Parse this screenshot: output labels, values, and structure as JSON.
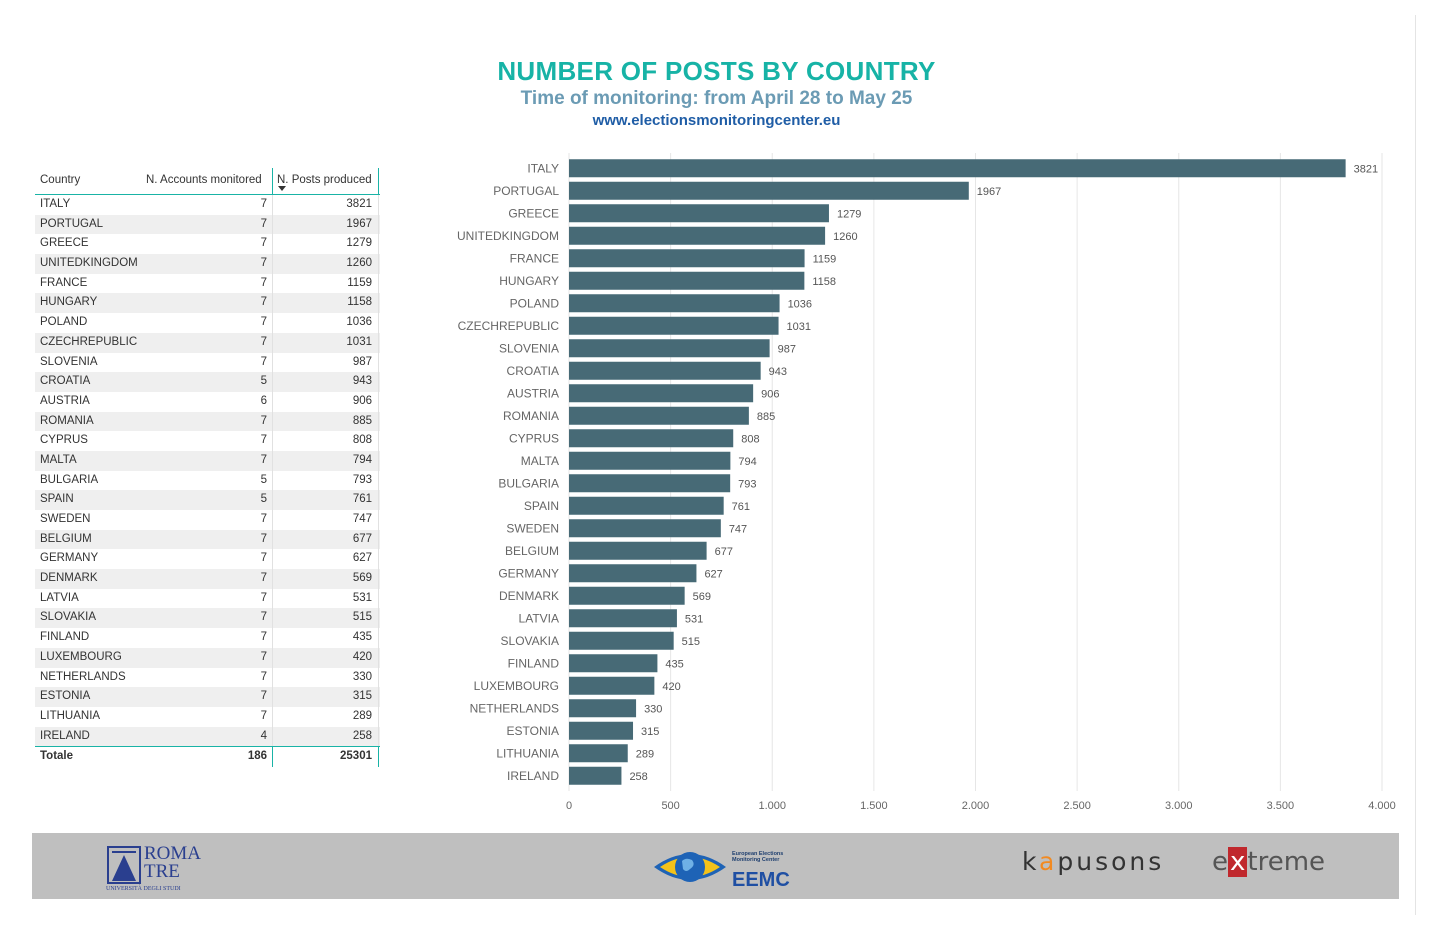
{
  "header": {
    "title": "NUMBER OF POSTS BY COUNTRY",
    "subtitle": "Time of monitoring: from April 28 to May 25",
    "website": "www.electionsmonitoringcenter.eu"
  },
  "table": {
    "columns": [
      "Country",
      "N. Accounts monitored",
      "N. Posts produced"
    ],
    "rows": [
      {
        "country": "ITALY",
        "accounts": "7",
        "posts": "3821"
      },
      {
        "country": "PORTUGAL",
        "accounts": "7",
        "posts": "1967"
      },
      {
        "country": "GREECE",
        "accounts": "7",
        "posts": "1279"
      },
      {
        "country": "UNITEDKINGDOM",
        "accounts": "7",
        "posts": "1260"
      },
      {
        "country": "FRANCE",
        "accounts": "7",
        "posts": "1159"
      },
      {
        "country": "HUNGARY",
        "accounts": "7",
        "posts": "1158"
      },
      {
        "country": "POLAND",
        "accounts": "7",
        "posts": "1036"
      },
      {
        "country": "CZECHREPUBLIC",
        "accounts": "7",
        "posts": "1031"
      },
      {
        "country": "SLOVENIA",
        "accounts": "7",
        "posts": "987"
      },
      {
        "country": "CROATIA",
        "accounts": "5",
        "posts": "943"
      },
      {
        "country": "AUSTRIA",
        "accounts": "6",
        "posts": "906"
      },
      {
        "country": "ROMANIA",
        "accounts": "7",
        "posts": "885"
      },
      {
        "country": "CYPRUS",
        "accounts": "7",
        "posts": "808"
      },
      {
        "country": "MALTA",
        "accounts": "7",
        "posts": "794"
      },
      {
        "country": "BULGARIA",
        "accounts": "5",
        "posts": "793"
      },
      {
        "country": "SPAIN",
        "accounts": "5",
        "posts": "761"
      },
      {
        "country": "SWEDEN",
        "accounts": "7",
        "posts": "747"
      },
      {
        "country": "BELGIUM",
        "accounts": "7",
        "posts": "677"
      },
      {
        "country": "GERMANY",
        "accounts": "7",
        "posts": "627"
      },
      {
        "country": "DENMARK",
        "accounts": "7",
        "posts": "569"
      },
      {
        "country": "LATVIA",
        "accounts": "7",
        "posts": "531"
      },
      {
        "country": "SLOVAKIA",
        "accounts": "7",
        "posts": "515"
      },
      {
        "country": "FINLAND",
        "accounts": "7",
        "posts": "435"
      },
      {
        "country": "LUXEMBOURG",
        "accounts": "7",
        "posts": "420"
      },
      {
        "country": "NETHERLANDS",
        "accounts": "7",
        "posts": "330"
      },
      {
        "country": "ESTONIA",
        "accounts": "7",
        "posts": "315"
      },
      {
        "country": "LITHUANIA",
        "accounts": "7",
        "posts": "289"
      },
      {
        "country": "IRELAND",
        "accounts": "4",
        "posts": "258"
      }
    ],
    "total": {
      "label": "Totale",
      "accounts": "186",
      "posts": "25301"
    }
  },
  "chart_data": {
    "type": "bar",
    "orientation": "horizontal",
    "categories": [
      "ITALY",
      "PORTUGAL",
      "GREECE",
      "UNITEDKINGDOM",
      "FRANCE",
      "HUNGARY",
      "POLAND",
      "CZECHREPUBLIC",
      "SLOVENIA",
      "CROATIA",
      "AUSTRIA",
      "ROMANIA",
      "CYPRUS",
      "MALTA",
      "BULGARIA",
      "SPAIN",
      "SWEDEN",
      "BELGIUM",
      "GERMANY",
      "DENMARK",
      "LATVIA",
      "SLOVAKIA",
      "FINLAND",
      "LUXEMBOURG",
      "NETHERLANDS",
      "ESTONIA",
      "LITHUANIA",
      "IRELAND"
    ],
    "values": [
      3821,
      1967,
      1279,
      1260,
      1159,
      1158,
      1036,
      1031,
      987,
      943,
      906,
      885,
      808,
      794,
      793,
      761,
      747,
      677,
      627,
      569,
      531,
      515,
      435,
      420,
      330,
      315,
      289,
      258
    ],
    "xlim": [
      0,
      4000
    ],
    "xticks": [
      0,
      500,
      1000,
      1500,
      2000,
      2500,
      3000,
      3500,
      4000
    ],
    "xtick_labels": [
      "0",
      "500",
      "1.000",
      "1.500",
      "2.000",
      "2.500",
      "3.000",
      "3.500",
      "4.000"
    ],
    "grid": true,
    "bar_color": "#476a76",
    "data_labels": true
  },
  "footer": {
    "roma_tre_top": "ROMA",
    "roma_tre_bottom": "TRE",
    "roma_tre_sub": "UNIVERSITÀ DEGLI STUDI",
    "eemc_small": "European Elections Monitoring Center",
    "eemc_name": "EEMC",
    "kapusons_k": "k",
    "kapusons_a": "a",
    "kapusons_rest": "pusons",
    "extreme_e": "e",
    "extreme_x": "x",
    "extreme_rest": "treme"
  },
  "colors": {
    "title": "#17b3a6",
    "subtitle": "#6b9bb4",
    "website": "#1f5da6",
    "bar": "#476a76",
    "footer_bg": "#bfbfbf"
  }
}
